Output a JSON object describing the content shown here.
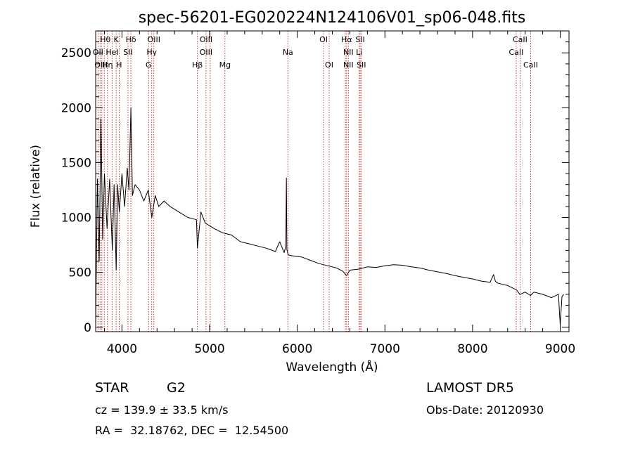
{
  "chart_data": {
    "type": "line",
    "title": "spec-56201-EG020224N124106V01_sp06-048.fits",
    "xlabel": "Wavelength (Å)",
    "ylabel": "Flux (relative)",
    "xlim": [
      3700,
      9100
    ],
    "ylim": [
      -40,
      2700
    ],
    "xticks": [
      4000,
      5000,
      6000,
      7000,
      8000,
      9000
    ],
    "yticks": [
      0,
      500,
      1000,
      1500,
      2000,
      2500
    ],
    "xtick_labels": [
      "4000",
      "5000",
      "6000",
      "7000",
      "8000",
      "9000"
    ],
    "ytick_labels": [
      "0",
      "500",
      "1000",
      "1500",
      "2000",
      "2500"
    ],
    "grid": false,
    "series": [
      {
        "color": "#000000",
        "x": [
          3700,
          3720,
          3740,
          3760,
          3780,
          3800,
          3830,
          3860,
          3890,
          3910,
          3934,
          3950,
          3970,
          4000,
          4030,
          4060,
          4080,
          4102,
          4120,
          4150,
          4200,
          4250,
          4300,
          4340,
          4380,
          4420,
          4480,
          4550,
          4650,
          4750,
          4850,
          4861,
          4900,
          4950,
          5050,
          5150,
          5250,
          5350,
          5450,
          5550,
          5650,
          5750,
          5800,
          5850,
          5870,
          5876,
          5882,
          5895,
          5950,
          6050,
          6150,
          6250,
          6350,
          6450,
          6520,
          6563,
          6600,
          6700,
          6800,
          6900,
          7000,
          7100,
          7200,
          7300,
          7400,
          7500,
          7600,
          7700,
          7800,
          7900,
          8000,
          8100,
          8200,
          8240,
          8260,
          8280,
          8300,
          8400,
          8500,
          8540,
          8600,
          8662,
          8700,
          8800,
          8900,
          8980,
          9000,
          9020,
          9040
        ],
        "y": [
          20,
          1350,
          600,
          1900,
          800,
          1400,
          900,
          1350,
          700,
          1300,
          520,
          1300,
          1050,
          1400,
          1100,
          1450,
          1250,
          2000,
          1200,
          1300,
          1250,
          1150,
          1250,
          1000,
          1200,
          1100,
          1150,
          1100,
          1050,
          1000,
          980,
          720,
          1050,
          950,
          900,
          860,
          840,
          780,
          760,
          740,
          720,
          690,
          780,
          680,
          740,
          1360,
          710,
          660,
          650,
          640,
          610,
          580,
          560,
          540,
          510,
          470,
          520,
          530,
          550,
          545,
          560,
          570,
          565,
          550,
          540,
          520,
          505,
          490,
          470,
          455,
          440,
          420,
          410,
          480,
          420,
          405,
          400,
          380,
          340,
          300,
          320,
          290,
          320,
          300,
          270,
          300,
          20,
          280,
          300
        ]
      }
    ],
    "lines_x": [
      3727,
      3750,
      3771,
      3798,
      3835,
      3889,
      3934,
      3968,
      4069,
      4102,
      4304,
      4340,
      4364,
      4861,
      4959,
      5007,
      5175,
      5893,
      6300,
      6364,
      6548,
      6563,
      6583,
      6707,
      6717,
      6731,
      8498,
      8542,
      8662
    ],
    "line_labels": [
      {
        "text": "Hθ",
        "x": 3810,
        "row": 0
      },
      {
        "text": "K",
        "x": 3934,
        "row": 0
      },
      {
        "text": "Hδ",
        "x": 4102,
        "row": 0
      },
      {
        "text": "OIII",
        "x": 4364,
        "row": 0
      },
      {
        "text": "OIII",
        "x": 4959,
        "row": 0
      },
      {
        "text": "OI",
        "x": 6300,
        "row": 0
      },
      {
        "text": "Hα",
        "x": 6563,
        "row": 0
      },
      {
        "text": "SII",
        "x": 6717,
        "row": 0
      },
      {
        "text": "CaII",
        "x": 8542,
        "row": 0
      },
      {
        "text": "OII",
        "x": 3727,
        "row": 1
      },
      {
        "text": "HeI",
        "x": 3889,
        "row": 1
      },
      {
        "text": "SII",
        "x": 4069,
        "row": 1
      },
      {
        "text": "Hγ",
        "x": 4340,
        "row": 1
      },
      {
        "text": "OIII",
        "x": 4959,
        "row": 1
      },
      {
        "text": "NII",
        "x": 6583,
        "row": 1
      },
      {
        "text": "Li",
        "x": 6707,
        "row": 1
      },
      {
        "text": "CaII",
        "x": 8498,
        "row": 1
      },
      {
        "text": "OIII",
        "x": 3760,
        "row": 2
      },
      {
        "text": "Hη",
        "x": 3835,
        "row": 2
      },
      {
        "text": "H",
        "x": 3968,
        "row": 2
      },
      {
        "text": "G",
        "x": 4304,
        "row": 2
      },
      {
        "text": "Hβ",
        "x": 4861,
        "row": 2
      },
      {
        "text": "Mg",
        "x": 5175,
        "row": 2
      },
      {
        "text": "Na",
        "x": 5893,
        "row": 1
      },
      {
        "text": "OI",
        "x": 6364,
        "row": 2
      },
      {
        "text": "NII",
        "x": 6583,
        "row": 2
      },
      {
        "text": "SII",
        "x": 6731,
        "row": 2
      },
      {
        "text": "CaII",
        "x": 8662,
        "row": 2
      }
    ]
  },
  "info": {
    "class_label": "STAR",
    "subclass": "G2",
    "survey": "LAMOST DR5",
    "cz": "cz = 139.9 ± 33.5 km/s",
    "obs_date": "Obs-Date: 20120930",
    "coords": "RA =  32.18762, DEC =  12.54500"
  },
  "colors": {
    "spectrum": "#000000",
    "line_markers": "#c00000",
    "background": "#ffffff"
  }
}
